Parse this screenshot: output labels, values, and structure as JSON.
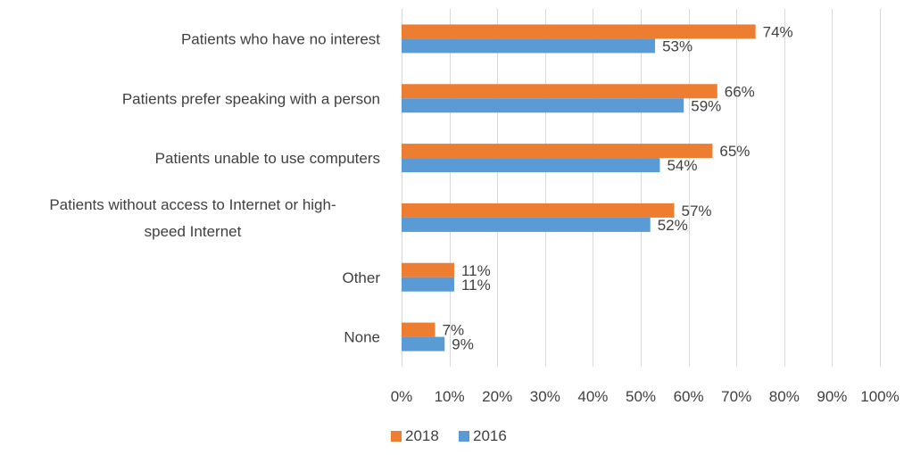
{
  "chart_data": {
    "type": "bar",
    "orientation": "horizontal",
    "categories": [
      "Patients who have no interest",
      "Patients prefer speaking with a person",
      "Patients unable to use computers",
      "Patients without access to Internet or high-speed Internet",
      "Other",
      "None"
    ],
    "category_lines": [
      [
        "Patients who have no interest"
      ],
      [
        "Patients prefer speaking with a person"
      ],
      [
        "Patients unable to use computers"
      ],
      [
        "Patients without access to Internet or high-",
        "speed Internet"
      ],
      [
        "Other"
      ],
      [
        "None"
      ]
    ],
    "series": [
      {
        "name": "2018",
        "color": "#ed7d31",
        "values": [
          74,
          66,
          65,
          57,
          11,
          7
        ],
        "labels": [
          "74%",
          "66%",
          "65%",
          "57%",
          "11%",
          "7%"
        ]
      },
      {
        "name": "2016",
        "color": "#5b9bd5",
        "values": [
          53,
          59,
          54,
          52,
          11,
          9
        ],
        "labels": [
          "53%",
          "59%",
          "54%",
          "52%",
          "11%",
          "9%"
        ]
      }
    ],
    "xlim": [
      0,
      100
    ],
    "x_ticks": [
      0,
      10,
      20,
      30,
      40,
      50,
      60,
      70,
      80,
      90,
      100
    ],
    "x_tick_labels": [
      "0%",
      "10%",
      "20%",
      "30%",
      "40%",
      "50%",
      "60%",
      "70%",
      "80%",
      "90%",
      "100%"
    ],
    "grid": true,
    "legend_position": "bottom",
    "title": "",
    "xlabel": "",
    "ylabel": ""
  }
}
